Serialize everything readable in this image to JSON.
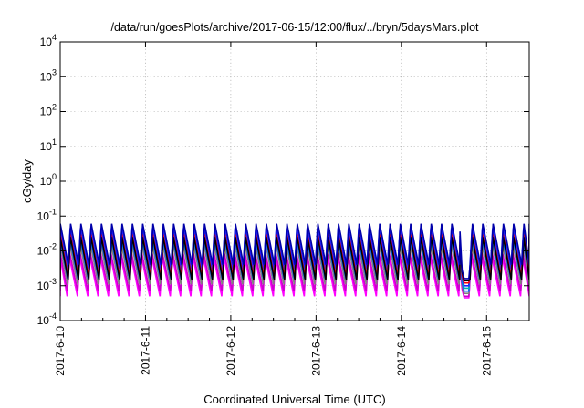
{
  "chart_data": {
    "type": "line",
    "title": "/data/run/goesPlots/archive/2017-06-15/12:00/flux/../bryn/5daysMars.plot",
    "xlabel": "Coordinated Universal Time (UTC)",
    "ylabel": "cGy/day",
    "y_scale": "log",
    "ylim": [
      0.0001,
      10000
    ],
    "y_ticks": [
      {
        "base": "10",
        "exp": "-4",
        "value": 0.0001
      },
      {
        "base": "10",
        "exp": "-3",
        "value": 0.001
      },
      {
        "base": "10",
        "exp": "-2",
        "value": 0.01
      },
      {
        "base": "10",
        "exp": "-1",
        "value": 0.1
      },
      {
        "base": "10",
        "exp": "0",
        "value": 1
      },
      {
        "base": "10",
        "exp": "1",
        "value": 10
      },
      {
        "base": "10",
        "exp": "2",
        "value": 100
      },
      {
        "base": "10",
        "exp": "3",
        "value": 1000
      },
      {
        "base": "10",
        "exp": "4",
        "value": 10000
      }
    ],
    "xlim": [
      "2017-06-10 00:00",
      "2017-06-15 12:00"
    ],
    "x_ticks": [
      "2017-6-10",
      "2017-6-11",
      "2017-6-12",
      "2017-6-13",
      "2017-6-14",
      "2017-6-15"
    ],
    "grid": true,
    "sawtooth_period_hours": 2.9,
    "sawtooth_phase_hours": 2.2,
    "series": [
      {
        "color": "#ff00ff",
        "peak": 0.0065,
        "trough": 0.0005
      },
      {
        "color": "#cc00cc",
        "peak": 0.009,
        "trough": 0.0007
      },
      {
        "color": "#808080",
        "peak": 0.016,
        "trough": 0.0011
      },
      {
        "color": "#0060ff",
        "peak": 0.022,
        "trough": 0.0016
      },
      {
        "color": "#00b0b0",
        "peak": 0.03,
        "trough": 0.0022
      },
      {
        "color": "#2020ff",
        "peak": 0.045,
        "trough": 0.003
      },
      {
        "color": "#ff0000",
        "peak": 0.03,
        "trough": 0.0018
      },
      {
        "color": "#000000",
        "peak": 0.025,
        "trough": 0.0015
      },
      {
        "color": "#0000aa",
        "peak": 0.06,
        "trough": 0.004
      }
    ],
    "tail": {
      "start": "2017-06-14 16:30",
      "end": "2017-06-14 19:00",
      "values": [
        0.00045,
        0.0005,
        0.0006,
        0.0007,
        0.00085,
        0.001,
        0.0012,
        0.0014,
        0.0016
      ]
    }
  }
}
